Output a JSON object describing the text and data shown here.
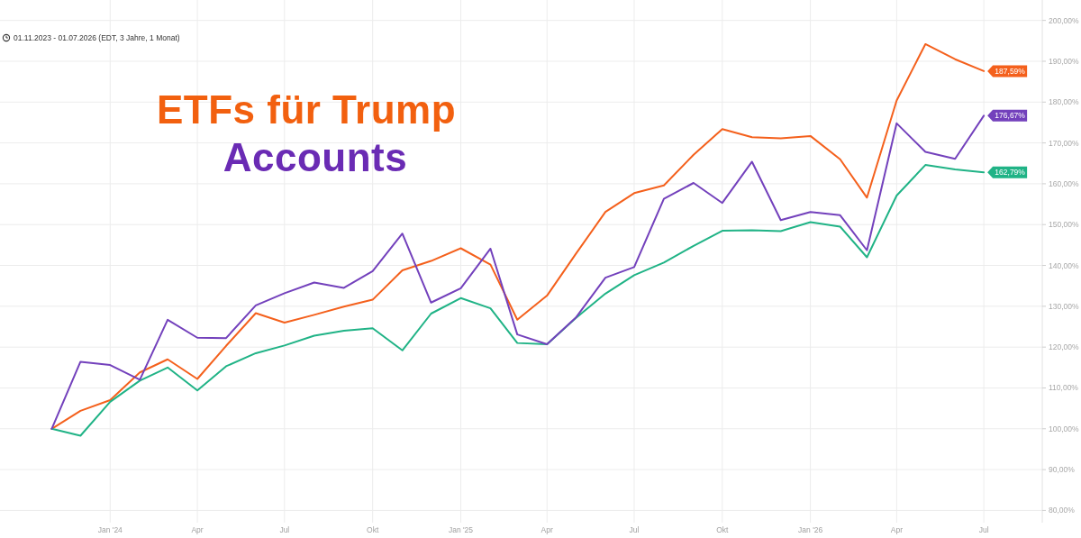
{
  "chart_data": {
    "type": "line",
    "title": "ETFs für Trump Accounts",
    "annotations": [
      "01.11.2023 - 01.07.2026 (EDT, 3 Jahre, 1 Monat)"
    ],
    "x": [
      "2023-11",
      "2023-12",
      "2024-01",
      "2024-02",
      "2024-03",
      "2024-04",
      "2024-05",
      "2024-06",
      "2024-07",
      "2024-08",
      "2024-09",
      "2024-10",
      "2024-11",
      "2024-12",
      "2025-01",
      "2025-02",
      "2025-03",
      "2025-04",
      "2025-05",
      "2025-06",
      "2025-07",
      "2025-08",
      "2025-09",
      "2025-10",
      "2025-11",
      "2025-12",
      "2026-01",
      "2026-02",
      "2026-03",
      "2026-04",
      "2026-05",
      "2026-06",
      "2026-07"
    ],
    "xlim": [
      "2023-09-08",
      "2026-08-31"
    ],
    "xticks": [
      {
        "value": "2024-01",
        "label": "Jan '24"
      },
      {
        "value": "2024-04",
        "label": "Apr"
      },
      {
        "value": "2024-07",
        "label": "Jul"
      },
      {
        "value": "2024-10",
        "label": "Okt"
      },
      {
        "value": "2025-01",
        "label": "Jan '25"
      },
      {
        "value": "2025-04",
        "label": "Apr"
      },
      {
        "value": "2025-07",
        "label": "Jul"
      },
      {
        "value": "2025-10",
        "label": "Okt"
      },
      {
        "value": "2026-01",
        "label": "Jan '26"
      },
      {
        "value": "2026-04",
        "label": "Apr"
      },
      {
        "value": "2026-07",
        "label": "Jul"
      }
    ],
    "ylim": [
      77,
      205
    ],
    "yticks": [
      {
        "value": 80,
        "label": "80,00%"
      },
      {
        "value": 90,
        "label": "90,00%"
      },
      {
        "value": 100,
        "label": "100,00%"
      },
      {
        "value": 110,
        "label": "110,00%"
      },
      {
        "value": 120,
        "label": "120,00%"
      },
      {
        "value": 130,
        "label": "130,00%"
      },
      {
        "value": 140,
        "label": "140,00%"
      },
      {
        "value": 150,
        "label": "150,00%"
      },
      {
        "value": 160,
        "label": "160,00%"
      },
      {
        "value": 170,
        "label": "170,00%"
      },
      {
        "value": 180,
        "label": "180,00%"
      },
      {
        "value": 190,
        "label": "190,00%"
      },
      {
        "value": 200,
        "label": "200,00%"
      }
    ],
    "grid": true,
    "series": [
      {
        "color": "#f4601c",
        "values": [
          100,
          104.4,
          107.0,
          113.8,
          117.0,
          112.2,
          120.3,
          128.3,
          126.0,
          127.9,
          129.9,
          131.6,
          138.8,
          141.1,
          144.2,
          140.2,
          126.7,
          132.6,
          142.8,
          153.1,
          157.7,
          159.6,
          167.1,
          173.4,
          171.4,
          171.1,
          171.7,
          166.0,
          156.6,
          180.4,
          194.2,
          190.5,
          187.59
        ],
        "value_labels": [
          null,
          null,
          null,
          null,
          null,
          null,
          null,
          null,
          null,
          null,
          null,
          null,
          null,
          null,
          null,
          null,
          null,
          null,
          null,
          null,
          null,
          null,
          null,
          null,
          null,
          null,
          null,
          null,
          null,
          null,
          null,
          null,
          "187,59%"
        ]
      },
      {
        "color": "#20b386",
        "values": [
          100,
          98.3,
          106.6,
          111.8,
          115.0,
          109.4,
          115.3,
          118.5,
          120.4,
          122.8,
          124.0,
          124.6,
          119.2,
          128.2,
          132.0,
          129.5,
          121.0,
          120.7,
          127.1,
          133.1,
          137.6,
          140.7,
          144.8,
          148.5,
          148.6,
          148.4,
          150.6,
          149.5,
          142.0,
          157.1,
          164.6,
          163.5,
          162.79
        ],
        "value_labels": [
          null,
          null,
          null,
          null,
          null,
          null,
          null,
          null,
          null,
          null,
          null,
          null,
          null,
          null,
          null,
          null,
          null,
          null,
          null,
          null,
          null,
          null,
          null,
          null,
          null,
          null,
          null,
          null,
          null,
          null,
          null,
          null,
          "162,79%"
        ]
      },
      {
        "color": "#7341bc",
        "values": [
          100,
          116.4,
          115.6,
          112.0,
          126.7,
          122.3,
          122.2,
          130.2,
          133.2,
          135.8,
          134.5,
          138.6,
          147.8,
          130.9,
          134.4,
          144.1,
          123.1,
          120.7,
          127.2,
          137.0,
          139.6,
          156.3,
          160.2,
          155.3,
          165.4,
          151.1,
          153.1,
          152.3,
          143.7,
          174.8,
          167.8,
          166.1,
          176.67
        ],
        "value_labels": [
          null,
          null,
          null,
          null,
          null,
          null,
          null,
          null,
          null,
          null,
          null,
          null,
          null,
          null,
          null,
          null,
          null,
          null,
          null,
          null,
          null,
          null,
          null,
          null,
          null,
          null,
          null,
          null,
          null,
          null,
          null,
          null,
          "176,67%"
        ]
      }
    ]
  }
}
